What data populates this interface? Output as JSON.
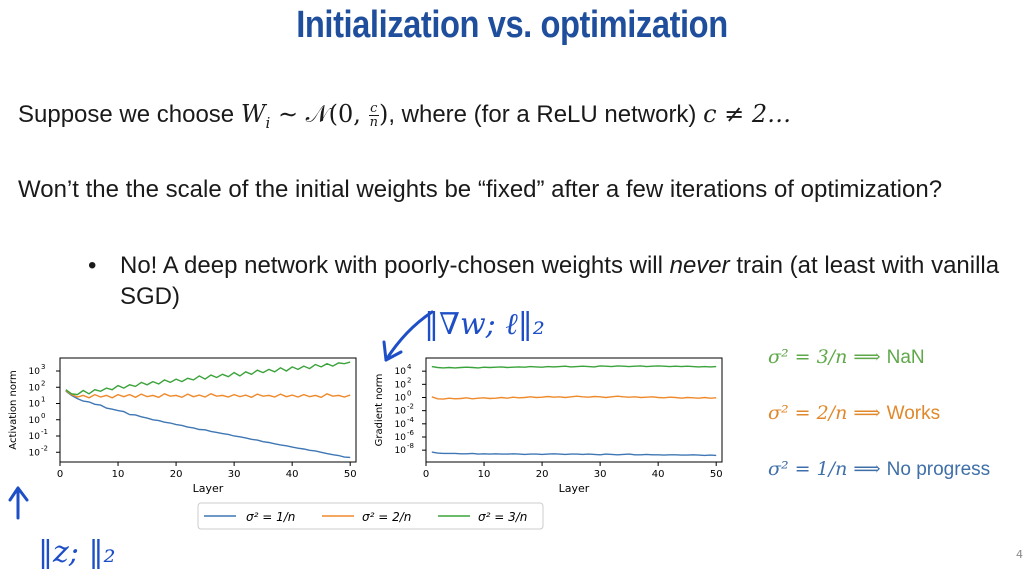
{
  "slide": {
    "title": "Initialization vs. optimization",
    "line1": {
      "prefix": "Suppose we choose ",
      "math_lhs": "W",
      "math_sub": "i",
      "math_sim": " ∼ 𝒩(0, ",
      "frac_num": "c",
      "frac_den": "n",
      "math_close": ")",
      "middle": ", where (for a ReLU network) ",
      "math_c": "c ≠ 2…"
    },
    "question": "Won’t the the scale of the initial weights be “fixed” after a few iterations of optimization?",
    "bullet": {
      "marker": "•",
      "pre": "No! A deep network with poorly-chosen weights will ",
      "emph": "never",
      "post": " train (at least with vanilla SGD)"
    },
    "outcomes": [
      {
        "math": "σ² = 3/n ⟹ ",
        "text": "NaN",
        "color": "#5fa84a"
      },
      {
        "math": "σ² = 2/n ⟹ ",
        "text": "Works",
        "color": "#e0892c"
      },
      {
        "math": "σ² = 1/n ⟹ ",
        "text": "No progress",
        "color": "#3f6fa8"
      }
    ],
    "annotations": {
      "grad_label": "‖∇w; ℓ‖₂",
      "act_label": "‖z; ‖₂"
    },
    "page_number": "4"
  },
  "chart_data": [
    {
      "type": "line",
      "xlabel": "Layer",
      "ylabel": "Activation norm",
      "xlim": [
        0,
        51
      ],
      "ylim": [
        -2.6,
        3.8
      ],
      "log_y": true,
      "xticks": [
        "0",
        "10",
        "20",
        "30",
        "40",
        "50"
      ],
      "yticks": [
        {
          "base": "10",
          "exp": "3",
          "v": 3
        },
        {
          "base": "10",
          "exp": "2",
          "v": 2
        },
        {
          "base": "10",
          "exp": "1",
          "v": 1
        },
        {
          "base": "10",
          "exp": "0",
          "v": 0
        },
        {
          "base": "10",
          "exp": "-1",
          "v": -1
        },
        {
          "base": "10",
          "exp": "-2",
          "v": -2
        }
      ],
      "x": [
        1,
        2,
        3,
        4,
        5,
        6,
        7,
        8,
        9,
        10,
        11,
        12,
        13,
        14,
        15,
        16,
        17,
        18,
        19,
        20,
        21,
        22,
        23,
        24,
        25,
        26,
        27,
        28,
        29,
        30,
        31,
        32,
        33,
        34,
        35,
        36,
        37,
        38,
        39,
        40,
        41,
        42,
        43,
        44,
        45,
        46,
        47,
        48,
        49,
        50
      ],
      "series": [
        {
          "name": "σ² = 1/n",
          "color": "#3f77b4",
          "log10_values": [
            1.76,
            1.5,
            1.3,
            1.15,
            1.1,
            0.95,
            0.9,
            0.72,
            0.65,
            0.56,
            0.5,
            0.32,
            0.3,
            0.18,
            0.1,
            0.0,
            -0.05,
            -0.15,
            -0.2,
            -0.3,
            -0.35,
            -0.45,
            -0.5,
            -0.6,
            -0.62,
            -0.72,
            -0.78,
            -0.85,
            -0.9,
            -1.0,
            -1.05,
            -1.12,
            -1.2,
            -1.25,
            -1.35,
            -1.4,
            -1.48,
            -1.55,
            -1.6,
            -1.68,
            -1.75,
            -1.8,
            -1.88,
            -1.92,
            -2.0,
            -2.08,
            -2.15,
            -2.2,
            -2.3,
            -2.32
          ]
        },
        {
          "name": "σ² = 2/n",
          "color": "#ef8a2c",
          "log10_values": [
            1.8,
            1.55,
            1.4,
            1.5,
            1.35,
            1.55,
            1.4,
            1.5,
            1.35,
            1.55,
            1.42,
            1.55,
            1.38,
            1.58,
            1.42,
            1.5,
            1.38,
            1.6,
            1.45,
            1.5,
            1.38,
            1.58,
            1.42,
            1.52,
            1.4,
            1.6,
            1.45,
            1.5,
            1.4,
            1.55,
            1.42,
            1.52,
            1.38,
            1.58,
            1.45,
            1.5,
            1.4,
            1.58,
            1.42,
            1.52,
            1.4,
            1.55,
            1.42,
            1.5,
            1.38,
            1.6,
            1.45,
            1.5,
            1.4,
            1.52
          ]
        },
        {
          "name": "σ² = 3/n",
          "color": "#3ba33b",
          "log10_values": [
            1.85,
            1.6,
            1.55,
            1.8,
            1.6,
            1.85,
            1.75,
            1.95,
            1.85,
            2.1,
            1.95,
            2.15,
            2.05,
            2.3,
            2.15,
            2.35,
            2.2,
            2.45,
            2.3,
            2.5,
            2.35,
            2.55,
            2.45,
            2.7,
            2.5,
            2.75,
            2.6,
            2.8,
            2.65,
            2.9,
            2.7,
            2.95,
            2.8,
            3.05,
            2.9,
            3.1,
            2.95,
            3.2,
            3.0,
            3.25,
            3.1,
            3.3,
            3.15,
            3.4,
            3.25,
            3.45,
            3.3,
            3.5,
            3.45,
            3.55
          ]
        }
      ]
    },
    {
      "type": "line",
      "xlabel": "Layer",
      "ylabel": "Gradient norm",
      "xlim": [
        0,
        51
      ],
      "ylim": [
        -9.8,
        6.0
      ],
      "log_y": true,
      "xticks": [
        "0",
        "10",
        "20",
        "30",
        "40",
        "50"
      ],
      "yticks": [
        {
          "base": "10",
          "exp": "4",
          "v": 4
        },
        {
          "base": "10",
          "exp": "2",
          "v": 2
        },
        {
          "base": "10",
          "exp": "0",
          "v": 0
        },
        {
          "base": "10",
          "exp": "-2",
          "v": -2
        },
        {
          "base": "10",
          "exp": "-4",
          "v": -4
        },
        {
          "base": "10",
          "exp": "-6",
          "v": -6
        },
        {
          "base": "10",
          "exp": "-8",
          "v": -8
        }
      ],
      "x": [
        1,
        2,
        3,
        4,
        5,
        6,
        7,
        8,
        9,
        10,
        11,
        12,
        13,
        14,
        15,
        16,
        17,
        18,
        19,
        20,
        21,
        22,
        23,
        24,
        25,
        26,
        27,
        28,
        29,
        30,
        31,
        32,
        33,
        34,
        35,
        36,
        37,
        38,
        39,
        40,
        41,
        42,
        43,
        44,
        45,
        46,
        47,
        48,
        49,
        50
      ],
      "series": [
        {
          "name": "σ² = 1/n",
          "color": "#3f77b4",
          "log10_values": [
            -8.3,
            -8.45,
            -8.5,
            -8.5,
            -8.5,
            -8.55,
            -8.55,
            -8.5,
            -8.6,
            -8.55,
            -8.6,
            -8.55,
            -8.6,
            -8.6,
            -8.55,
            -8.6,
            -8.65,
            -8.6,
            -8.6,
            -8.65,
            -8.6,
            -8.55,
            -8.6,
            -8.65,
            -8.6,
            -8.6,
            -8.65,
            -8.6,
            -8.65,
            -8.7,
            -8.6,
            -8.65,
            -8.7,
            -8.65,
            -8.6,
            -8.7,
            -8.7,
            -8.65,
            -8.7,
            -8.7,
            -8.75,
            -8.7,
            -8.7,
            -8.75,
            -8.75,
            -8.7,
            -8.75,
            -8.8,
            -8.75,
            -8.8
          ]
        },
        {
          "name": "σ² = 2/n",
          "color": "#ef8a2c",
          "log10_values": [
            0.1,
            -0.2,
            -0.25,
            -0.1,
            -0.2,
            -0.15,
            -0.05,
            -0.2,
            -0.1,
            -0.05,
            -0.15,
            -0.1,
            0.0,
            -0.1,
            0.05,
            -0.05,
            0.0,
            0.1,
            0.0,
            0.05,
            0.15,
            0.05,
            0.1,
            0.0,
            0.1,
            0.2,
            0.1,
            0.05,
            0.15,
            0.1,
            0.0,
            0.1,
            0.2,
            0.1,
            0.05,
            0.1,
            0.0,
            0.05,
            0.1,
            0.0,
            -0.05,
            0.05,
            0.0,
            -0.1,
            0.0,
            -0.05,
            -0.1,
            0.0,
            -0.1,
            -0.05
          ]
        },
        {
          "name": "σ² = 3/n",
          "color": "#3ba33b",
          "log10_values": [
            4.7,
            4.55,
            4.5,
            4.55,
            4.5,
            4.55,
            4.6,
            4.55,
            4.5,
            4.6,
            4.55,
            4.6,
            4.65,
            4.55,
            4.6,
            4.65,
            4.6,
            4.7,
            4.65,
            4.6,
            4.7,
            4.65,
            4.7,
            4.75,
            4.65,
            4.7,
            4.75,
            4.7,
            4.65,
            4.8,
            4.75,
            4.7,
            4.8,
            4.75,
            4.7,
            4.75,
            4.8,
            4.7,
            4.75,
            4.8,
            4.75,
            4.7,
            4.75,
            4.7,
            4.75,
            4.7,
            4.65,
            4.7,
            4.65,
            4.7
          ]
        }
      ]
    }
  ]
}
